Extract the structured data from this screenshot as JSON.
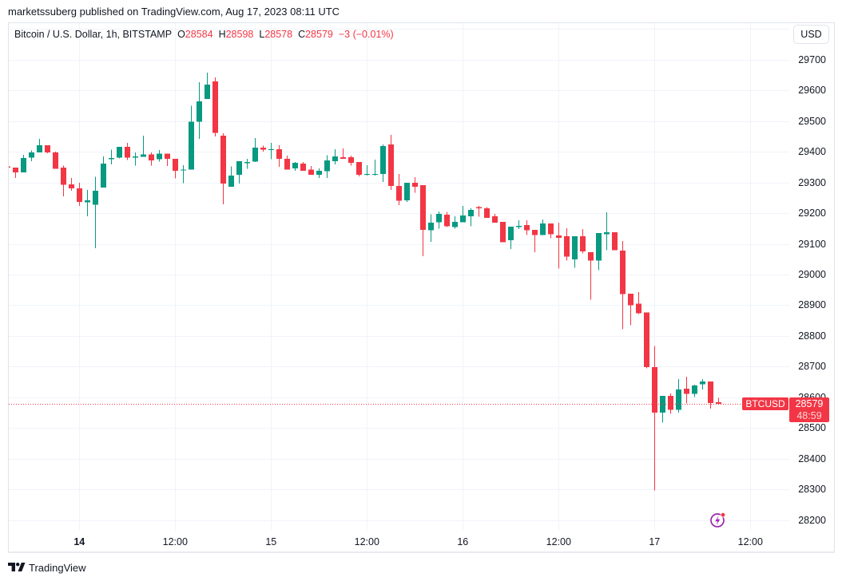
{
  "header": {
    "published_text": "marketssuberg published on TradingView.com, Aug 17, 2023 08:11 UTC"
  },
  "legend": {
    "symbol_text": "Bitcoin / U.S. Dollar, 1h, BITSTAMP",
    "open_label": "O",
    "open_value": "28584",
    "high_label": "H",
    "high_value": "28598",
    "low_label": "L",
    "low_value": "28578",
    "close_label": "C",
    "close_value": "28579",
    "change_text": "−3 (−0.01%)"
  },
  "currency_button": {
    "label": "USD"
  },
  "price_tag": {
    "symbol": "BTCUSD",
    "price": "28579",
    "countdown": "48:59"
  },
  "footer": {
    "brand": "TradingView"
  },
  "icons": {
    "streams": "lightning-bolt-circle-icon",
    "brand": "tradingview-logo-icon"
  },
  "colors": {
    "up": "#089981",
    "down": "#f23645",
    "text": "#131722",
    "grid": "#f0f3fa",
    "border": "#e0e3eb",
    "accent_purple": "#9c27b0"
  },
  "chart_data": {
    "type": "candlestick",
    "title": "Bitcoin / U.S. Dollar, 1h, BITSTAMP",
    "symbol": "BTCUSD",
    "interval": "1h",
    "xlabel": "",
    "ylabel": "USD",
    "ylim": [
      28166,
      29821
    ],
    "grid": true,
    "legend_position": "top-left",
    "last_price": 28579,
    "y_ticks": [
      28200,
      28300,
      28400,
      28500,
      28600,
      28700,
      28800,
      28900,
      29000,
      29100,
      29200,
      29300,
      29400,
      29500,
      29600,
      29700
    ],
    "x_ticks": [
      {
        "label": "14",
        "index": 9,
        "bold": true
      },
      {
        "label": "12:00",
        "index": 21
      },
      {
        "label": "15",
        "index": 33
      },
      {
        "label": "12:00",
        "index": 45
      },
      {
        "label": "16",
        "index": 57
      },
      {
        "label": "12:00",
        "index": 69
      },
      {
        "label": "17",
        "index": 81
      },
      {
        "label": "12:00",
        "index": 93
      }
    ],
    "x": [
      "13 15:00",
      "13 16:00",
      "13 17:00",
      "13 18:00",
      "13 19:00",
      "13 20:00",
      "13 21:00",
      "13 22:00",
      "13 23:00",
      "14 00:00",
      "14 01:00",
      "14 02:00",
      "14 03:00",
      "14 04:00",
      "14 05:00",
      "14 06:00",
      "14 07:00",
      "14 08:00",
      "14 09:00",
      "14 10:00",
      "14 11:00",
      "14 12:00",
      "14 13:00",
      "14 14:00",
      "14 15:00",
      "14 16:00",
      "14 17:00",
      "14 18:00",
      "14 19:00",
      "14 20:00",
      "14 21:00",
      "14 22:00",
      "14 23:00",
      "15 00:00",
      "15 01:00",
      "15 02:00",
      "15 03:00",
      "15 04:00",
      "15 05:00",
      "15 06:00",
      "15 07:00",
      "15 08:00",
      "15 09:00",
      "15 10:00",
      "15 11:00",
      "15 12:00",
      "15 13:00",
      "15 14:00",
      "15 15:00",
      "15 16:00",
      "15 17:00",
      "15 18:00",
      "15 19:00",
      "15 20:00",
      "15 21:00",
      "15 22:00",
      "15 23:00",
      "16 00:00",
      "16 01:00",
      "16 02:00",
      "16 03:00",
      "16 04:00",
      "16 05:00",
      "16 06:00",
      "16 07:00",
      "16 08:00",
      "16 09:00",
      "16 10:00",
      "16 11:00",
      "16 12:00",
      "16 13:00",
      "16 14:00",
      "16 15:00",
      "16 16:00",
      "16 17:00",
      "16 18:00",
      "16 19:00",
      "16 20:00",
      "16 21:00",
      "16 22:00",
      "16 23:00",
      "17 00:00",
      "17 01:00",
      "17 02:00",
      "17 03:00",
      "17 04:00",
      "17 05:00",
      "17 06:00",
      "17 07:00",
      "17 08:00"
    ],
    "ohlc_fields": [
      "open",
      "high",
      "low",
      "close"
    ],
    "ohlc": [
      [
        29352,
        29353,
        29347,
        29348
      ],
      [
        29348,
        29348,
        29315,
        29333
      ],
      [
        29333,
        29390,
        29333,
        29379
      ],
      [
        29380,
        29404,
        29369,
        29397
      ],
      [
        29398,
        29442,
        29398,
        29421
      ],
      [
        29421,
        29421,
        29395,
        29398
      ],
      [
        29398,
        29400,
        29344,
        29344
      ],
      [
        29348,
        29354,
        29255,
        29292
      ],
      [
        29293,
        29315,
        29273,
        29281
      ],
      [
        29280,
        29299,
        29224,
        29237
      ],
      [
        29235,
        29276,
        29190,
        29241
      ],
      [
        29227,
        29318,
        29086,
        29273
      ],
      [
        29283,
        29385,
        29283,
        29361
      ],
      [
        29375,
        29407,
        29359,
        29379
      ],
      [
        29380,
        29416,
        29378,
        29416
      ],
      [
        29416,
        29429,
        29373,
        29380
      ],
      [
        29382,
        29397,
        29354,
        29384
      ],
      [
        29383,
        29452,
        29383,
        29391
      ],
      [
        29391,
        29397,
        29354,
        29372
      ],
      [
        29375,
        29405,
        29367,
        29394
      ],
      [
        29394,
        29394,
        29353,
        29377
      ],
      [
        29377,
        29377,
        29313,
        29338
      ],
      [
        29339,
        29356,
        29297,
        29342
      ],
      [
        29341,
        29549,
        29341,
        29497
      ],
      [
        29497,
        29626,
        29442,
        29564
      ],
      [
        29572,
        29657,
        29572,
        29618
      ],
      [
        29629,
        29642,
        29450,
        29461
      ],
      [
        29452,
        29460,
        29229,
        29296
      ],
      [
        29286,
        29352,
        29286,
        29322
      ],
      [
        29325,
        29369,
        29296,
        29369
      ],
      [
        29364,
        29377,
        29344,
        29366
      ],
      [
        29368,
        29444,
        29366,
        29413
      ],
      [
        29413,
        29420,
        29400,
        29406
      ],
      [
        29407,
        29429,
        29375,
        29408
      ],
      [
        29408,
        29421,
        29351,
        29377
      ],
      [
        29377,
        29387,
        29341,
        29341
      ],
      [
        29346,
        29366,
        29338,
        29364
      ],
      [
        29361,
        29366,
        29338,
        29338
      ],
      [
        29341,
        29353,
        29325,
        29325
      ],
      [
        29325,
        29345,
        29315,
        29338
      ],
      [
        29336,
        29388,
        29315,
        29371
      ],
      [
        29369,
        29408,
        29358,
        29384
      ],
      [
        29382,
        29410,
        29377,
        29377
      ],
      [
        29382,
        29387,
        29354,
        29364
      ],
      [
        29366,
        29366,
        29319,
        29325
      ],
      [
        29326,
        29356,
        29322,
        29328
      ],
      [
        29326,
        29374,
        29322,
        29328
      ],
      [
        29328,
        29423,
        29301,
        29418
      ],
      [
        29423,
        29455,
        29276,
        29289
      ],
      [
        29288,
        29327,
        29226,
        29240
      ],
      [
        29242,
        29299,
        29236,
        29299
      ],
      [
        29299,
        29317,
        29266,
        29286
      ],
      [
        29291,
        29291,
        29060,
        29146
      ],
      [
        29144,
        29196,
        29107,
        29169
      ],
      [
        29170,
        29205,
        29149,
        29197
      ],
      [
        29195,
        29204,
        29154,
        29157
      ],
      [
        29154,
        29190,
        29150,
        29171
      ],
      [
        29170,
        29223,
        29170,
        29192
      ],
      [
        29190,
        29216,
        29157,
        29210
      ],
      [
        29219,
        29223,
        29188,
        29217
      ],
      [
        29216,
        29219,
        29185,
        29185
      ],
      [
        29190,
        29197,
        29169,
        29169
      ],
      [
        29171,
        29171,
        29105,
        29105
      ],
      [
        29112,
        29156,
        29083,
        29156
      ],
      [
        29156,
        29177,
        29148,
        29158
      ],
      [
        29161,
        29177,
        29128,
        29144
      ],
      [
        29145,
        29145,
        29073,
        29128
      ],
      [
        29128,
        29179,
        29128,
        29166
      ],
      [
        29166,
        29166,
        29118,
        29131
      ],
      [
        29127,
        29169,
        29020,
        29120
      ],
      [
        29125,
        29151,
        29045,
        29059
      ],
      [
        29049,
        29125,
        29022,
        29125
      ],
      [
        29125,
        29148,
        29069,
        29075
      ],
      [
        29073,
        29073,
        28918,
        29045
      ],
      [
        29045,
        29135,
        29014,
        29135
      ],
      [
        29131,
        29203,
        29079,
        29138
      ],
      [
        29138,
        29138,
        29079,
        29079
      ],
      [
        29078,
        29109,
        28822,
        28936
      ],
      [
        28938,
        28938,
        28835,
        28900
      ],
      [
        28905,
        28943,
        28871,
        28874
      ],
      [
        28876,
        28876,
        28695,
        28699
      ],
      [
        28699,
        28768,
        28297,
        28551
      ],
      [
        28550,
        28605,
        28518,
        28605
      ],
      [
        28605,
        28613,
        28547,
        28560
      ],
      [
        28560,
        28660,
        28550,
        28626
      ],
      [
        28629,
        28668,
        28580,
        28612
      ],
      [
        28611,
        28642,
        28601,
        28639
      ],
      [
        28643,
        28660,
        28626,
        28652
      ],
      [
        28652,
        28652,
        28563,
        28582
      ],
      [
        28584,
        28598,
        28578,
        28579
      ]
    ]
  }
}
